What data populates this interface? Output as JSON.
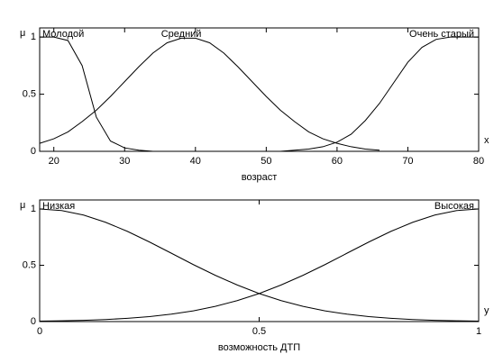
{
  "chart_data": [
    {
      "type": "line",
      "y_label": "μ",
      "x_symbol": "x",
      "xlabel": "возраст",
      "x": [
        18,
        20,
        22,
        24,
        26,
        28,
        30,
        32,
        34,
        36,
        38,
        40,
        42,
        44,
        46,
        48,
        50,
        52,
        54,
        56,
        58,
        60,
        62,
        64,
        66,
        68,
        70,
        72,
        74,
        76,
        78,
        80
      ],
      "series": [
        {
          "name": "Молодой",
          "color": "#000000",
          "values": [
            1,
            1,
            0.97,
            0.75,
            0.3,
            0.09,
            0.03,
            0.01,
            0,
            null,
            null,
            null,
            null,
            null,
            null,
            null,
            null,
            null,
            null,
            null,
            null,
            null,
            null,
            null,
            null,
            null,
            null,
            null,
            null,
            null,
            null,
            null
          ]
        },
        {
          "name": "Средний",
          "color": "#000000",
          "values": [
            0.07,
            0.11,
            0.17,
            0.26,
            0.36,
            0.48,
            0.61,
            0.74,
            0.86,
            0.95,
            0.99,
            0.99,
            0.95,
            0.86,
            0.74,
            0.61,
            0.48,
            0.36,
            0.26,
            0.17,
            0.11,
            0.07,
            0.04,
            0.02,
            0.01,
            null,
            null,
            null,
            null,
            null,
            null,
            null
          ]
        },
        {
          "name": "Очень старый",
          "color": "#000000",
          "values": [
            null,
            null,
            null,
            null,
            null,
            null,
            null,
            null,
            null,
            null,
            null,
            null,
            null,
            null,
            null,
            null,
            null,
            0,
            0.01,
            0.02,
            0.04,
            0.08,
            0.15,
            0.27,
            0.42,
            0.6,
            0.78,
            0.91,
            0.98,
            1,
            1,
            1
          ]
        }
      ],
      "xlim": [
        18,
        80
      ],
      "xticks": [
        20,
        30,
        40,
        50,
        60,
        70,
        80
      ],
      "ylim": [
        0,
        1.08
      ],
      "yticks": [
        0,
        0.5,
        1
      ]
    },
    {
      "type": "line",
      "y_label": "μ",
      "x_symbol": "y",
      "xlabel": "возможность ДТП",
      "x": [
        0,
        0.05,
        0.1,
        0.15,
        0.2,
        0.25,
        0.3,
        0.35,
        0.4,
        0.45,
        0.5,
        0.55,
        0.6,
        0.65,
        0.7,
        0.75,
        0.8,
        0.85,
        0.9,
        0.95,
        1
      ],
      "series": [
        {
          "name": "Низкая",
          "color": "#000000",
          "values": [
            1,
            0.986,
            0.946,
            0.882,
            0.801,
            0.707,
            0.607,
            0.506,
            0.411,
            0.325,
            0.249,
            0.186,
            0.135,
            0.095,
            0.066,
            0.044,
            0.029,
            0.018,
            0.011,
            0.007,
            0.004
          ]
        },
        {
          "name": "Высокая",
          "color": "#000000",
          "values": [
            0.004,
            0.007,
            0.011,
            0.018,
            0.029,
            0.044,
            0.066,
            0.095,
            0.135,
            0.186,
            0.249,
            0.325,
            0.411,
            0.506,
            0.607,
            0.707,
            0.801,
            0.882,
            0.946,
            0.986,
            1
          ]
        }
      ],
      "xlim": [
        0,
        1
      ],
      "xticks": [
        0,
        0.5,
        1
      ],
      "ylim": [
        0,
        1.08
      ],
      "yticks": [
        0,
        0.5,
        1
      ]
    }
  ]
}
